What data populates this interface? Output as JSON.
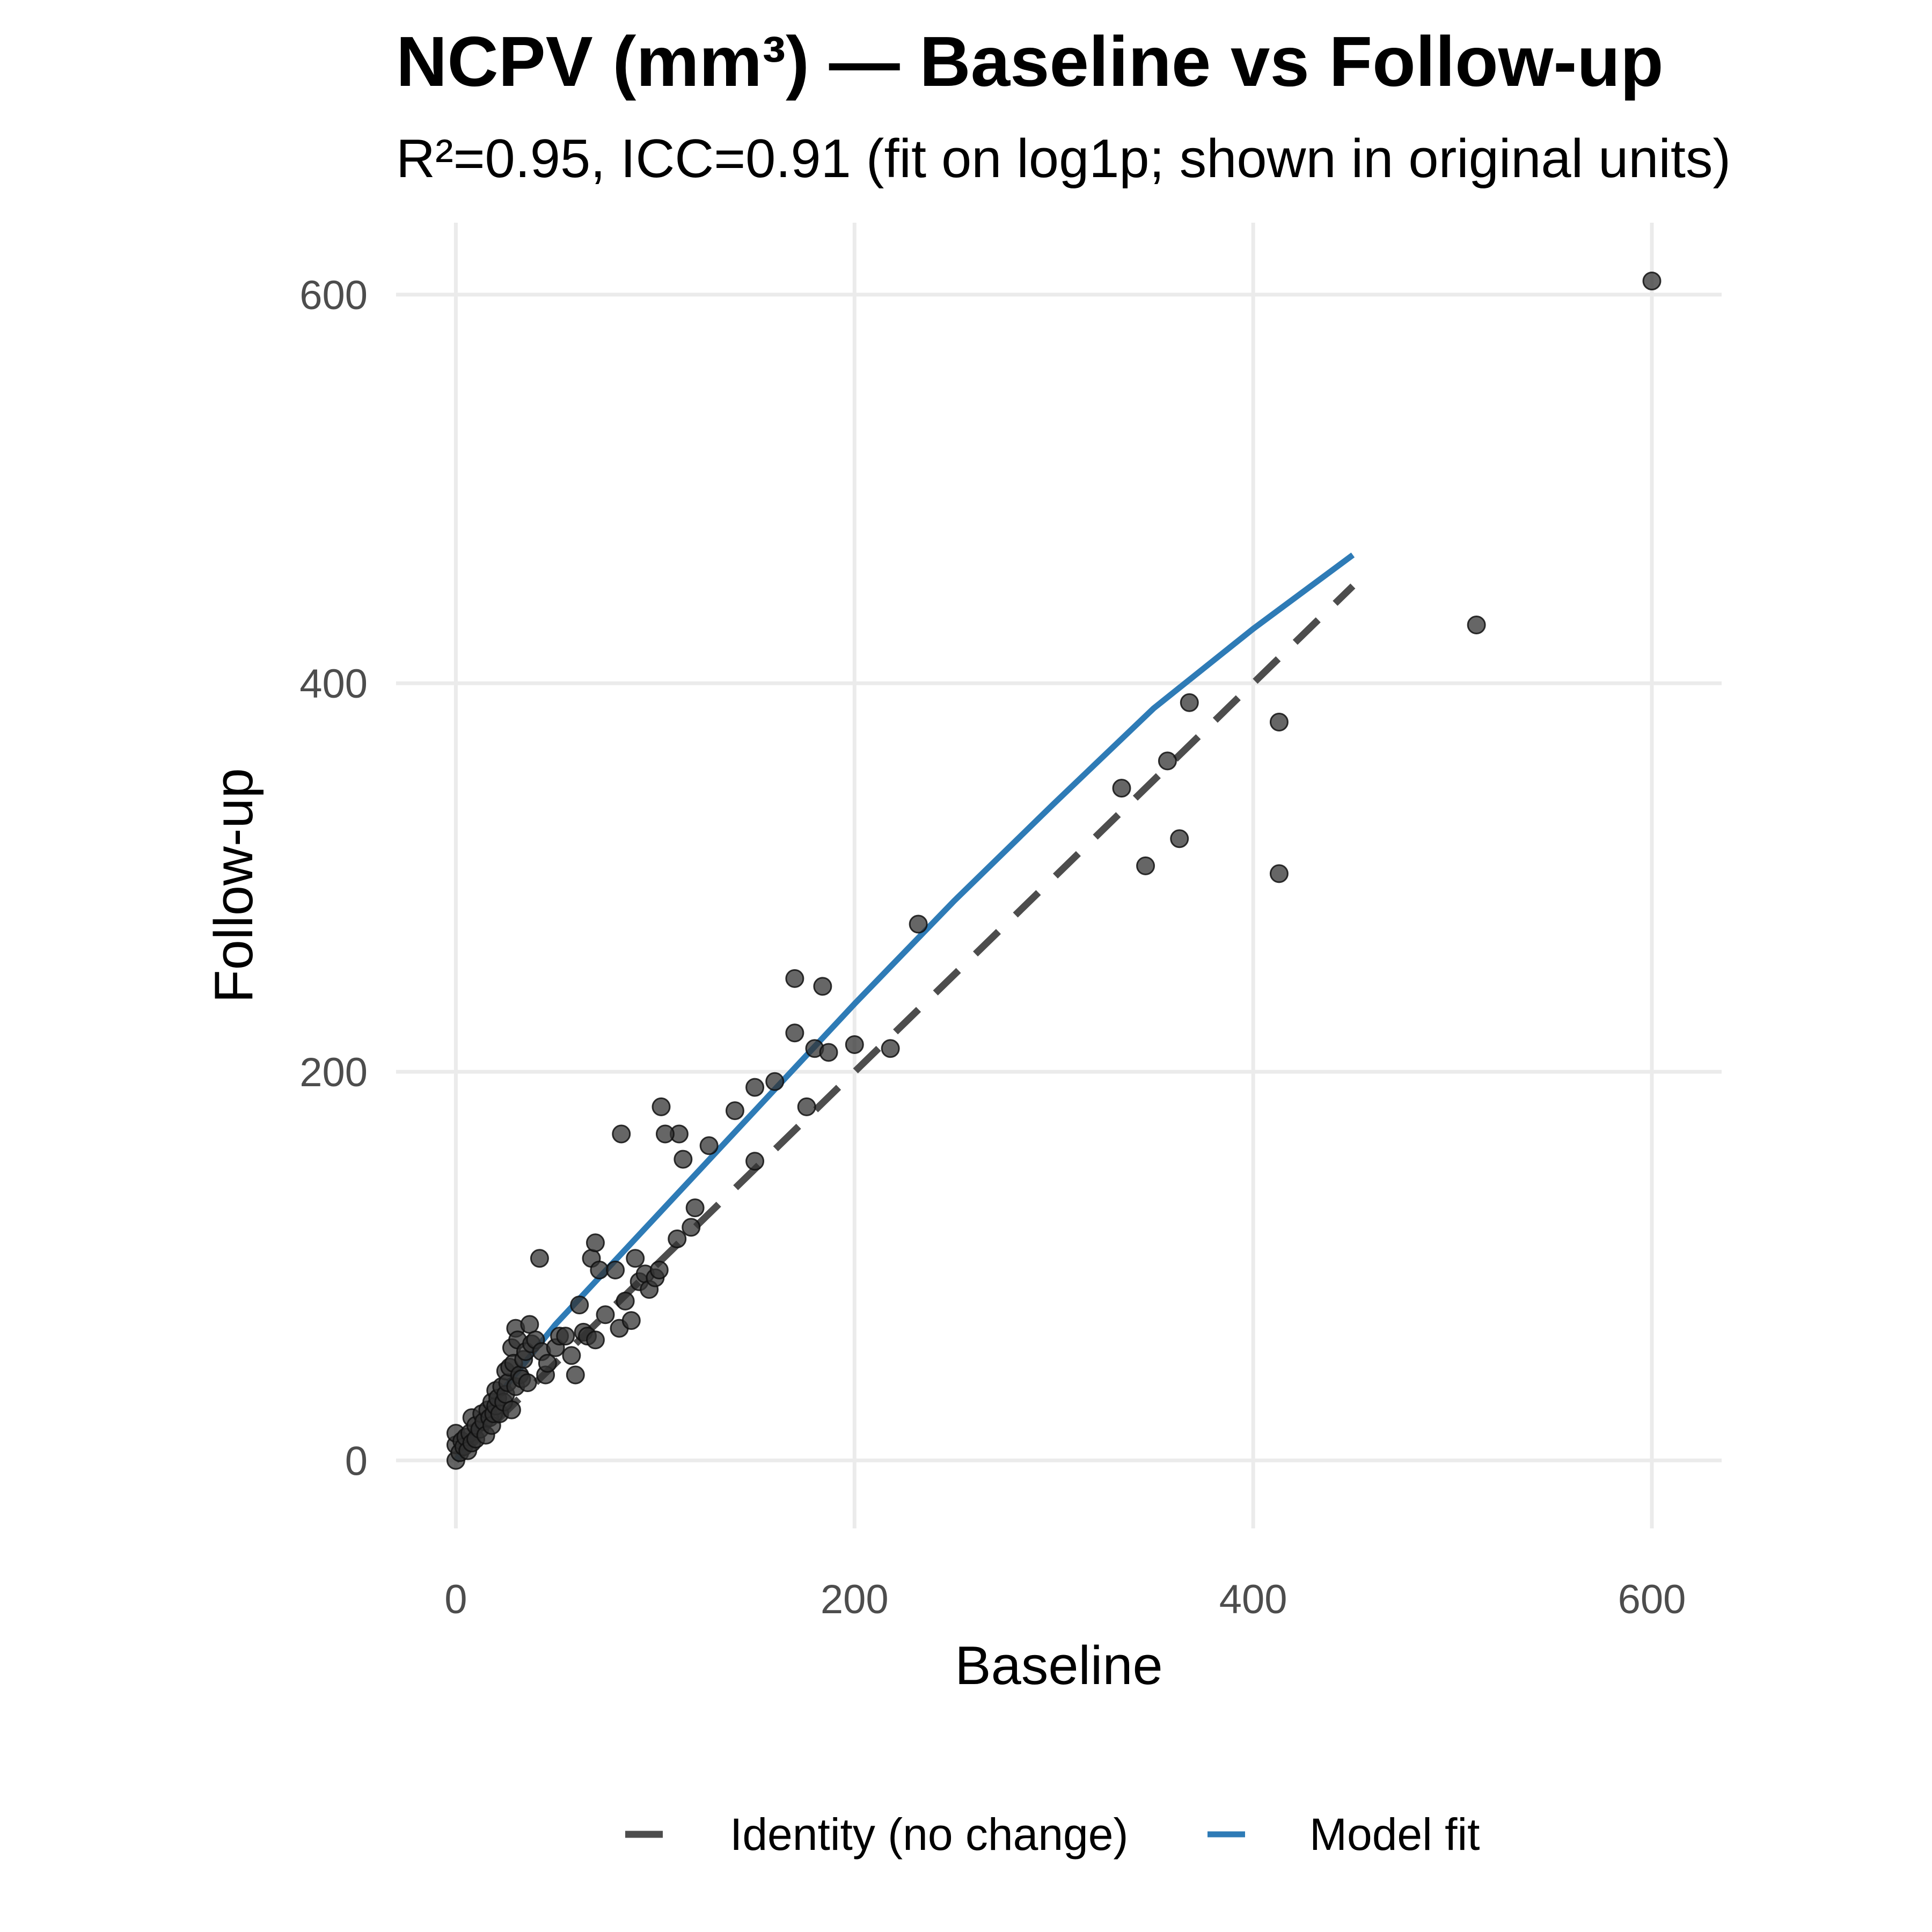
{
  "chart_data": {
    "type": "scatter",
    "title": "NCPV (mm³) — Baseline vs Follow-up",
    "subtitle": "R²=0.95, ICC=0.91 (fit on log1p; shown in original units)",
    "xlabel": "Baseline",
    "ylabel": "Follow-up",
    "xlim": [
      -30,
      635
    ],
    "ylim": [
      -35,
      637
    ],
    "x_ticks": [
      0,
      200,
      400,
      600
    ],
    "y_ticks": [
      0,
      200,
      400,
      600
    ],
    "grid": true,
    "legend_position": "bottom",
    "points": [
      [
        0,
        0
      ],
      [
        0,
        8
      ],
      [
        0,
        14
      ],
      [
        2,
        4
      ],
      [
        3,
        10
      ],
      [
        4,
        7
      ],
      [
        5,
        12
      ],
      [
        6,
        5
      ],
      [
        7,
        14
      ],
      [
        8,
        9
      ],
      [
        8,
        22
      ],
      [
        10,
        11
      ],
      [
        10,
        18
      ],
      [
        12,
        16
      ],
      [
        13,
        24
      ],
      [
        14,
        20
      ],
      [
        15,
        13
      ],
      [
        16,
        26
      ],
      [
        17,
        22
      ],
      [
        18,
        30
      ],
      [
        18,
        18
      ],
      [
        19,
        24
      ],
      [
        20,
        28
      ],
      [
        20,
        36
      ],
      [
        21,
        32
      ],
      [
        22,
        24
      ],
      [
        23,
        38
      ],
      [
        24,
        30
      ],
      [
        25,
        46
      ],
      [
        25,
        34
      ],
      [
        26,
        40
      ],
      [
        27,
        48
      ],
      [
        28,
        26
      ],
      [
        28,
        58
      ],
      [
        29,
        50
      ],
      [
        30,
        38
      ],
      [
        30,
        68
      ],
      [
        31,
        62
      ],
      [
        32,
        44
      ],
      [
        33,
        42
      ],
      [
        34,
        52
      ],
      [
        35,
        56
      ],
      [
        36,
        40
      ],
      [
        37,
        70
      ],
      [
        38,
        60
      ],
      [
        40,
        62
      ],
      [
        42,
        104
      ],
      [
        43,
        56
      ],
      [
        45,
        44
      ],
      [
        46,
        50
      ],
      [
        50,
        58
      ],
      [
        52,
        64
      ],
      [
        55,
        64
      ],
      [
        58,
        54
      ],
      [
        60,
        44
      ],
      [
        62,
        80
      ],
      [
        64,
        66
      ],
      [
        66,
        64
      ],
      [
        68,
        104
      ],
      [
        70,
        112
      ],
      [
        70,
        62
      ],
      [
        72,
        98
      ],
      [
        75,
        75
      ],
      [
        80,
        98
      ],
      [
        82,
        68
      ],
      [
        85,
        82
      ],
      [
        88,
        72
      ],
      [
        90,
        104
      ],
      [
        92,
        92
      ],
      [
        95,
        96
      ],
      [
        97,
        88
      ],
      [
        100,
        94
      ],
      [
        102,
        98
      ],
      [
        118,
        120
      ],
      [
        120,
        130
      ],
      [
        112,
        168
      ],
      [
        83,
        168
      ],
      [
        103,
        182
      ],
      [
        114,
        155
      ],
      [
        105,
        168
      ],
      [
        111,
        114
      ],
      [
        127,
        162
      ],
      [
        140,
        180
      ],
      [
        150,
        154
      ],
      [
        150,
        192
      ],
      [
        160,
        195
      ],
      [
        170,
        248
      ],
      [
        170,
        220
      ],
      [
        176,
        182
      ],
      [
        180,
        212
      ],
      [
        184,
        244
      ],
      [
        187,
        210
      ],
      [
        200,
        214
      ],
      [
        218,
        212
      ],
      [
        232,
        276
      ],
      [
        334,
        346
      ],
      [
        346,
        306
      ],
      [
        357,
        360
      ],
      [
        363,
        320
      ],
      [
        368,
        390
      ],
      [
        413,
        380
      ],
      [
        413,
        302
      ],
      [
        512,
        430
      ],
      [
        600,
        607
      ]
    ],
    "series": [
      {
        "name": "Identity (no change)",
        "style": "dashed",
        "color": "#4d4d4d",
        "x": [
          0,
          450
        ],
        "y": [
          0,
          450
        ]
      },
      {
        "name": "Model fit",
        "style": "solid",
        "color": "#2e7bb6",
        "x": [
          0,
          10,
          25,
          50,
          100,
          150,
          200,
          250,
          300,
          350,
          400,
          450
        ],
        "y": [
          0,
          17,
          38,
          70,
          125,
          180,
          235,
          288,
          338,
          387,
          428,
          466
        ]
      }
    ],
    "point_color": "#333333",
    "point_opacity": 0.75
  }
}
